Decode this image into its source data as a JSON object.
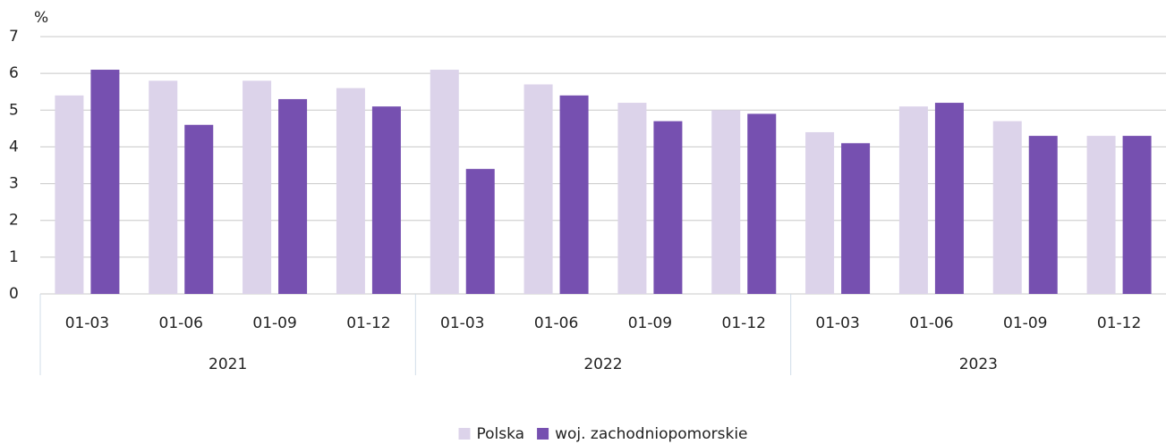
{
  "chart_data": {
    "type": "bar",
    "y_axis_label": "%",
    "categories": [
      "01-03",
      "01-06",
      "01-09",
      "01-12",
      "01-03",
      "01-06",
      "01-09",
      "01-12",
      "01-03",
      "01-06",
      "01-09",
      "01-12"
    ],
    "category_groups": [
      "2021",
      "2022",
      "2023"
    ],
    "series": [
      {
        "name": "Polska",
        "color": "#dcd3ea",
        "values": [
          5.4,
          5.8,
          5.8,
          5.6,
          6.1,
          5.7,
          5.2,
          5.0,
          4.4,
          5.1,
          4.7,
          4.3
        ]
      },
      {
        "name": "woj. zachodniopomorskie",
        "color": "#7650b0",
        "values": [
          6.1,
          4.6,
          5.3,
          5.1,
          3.4,
          5.4,
          4.7,
          4.9,
          4.1,
          5.2,
          4.3,
          4.3
        ]
      }
    ],
    "ylim": [
      0,
      7
    ],
    "yticks": [
      0,
      1,
      2,
      3,
      4,
      5,
      6,
      7
    ],
    "grid": true,
    "legend": "bottom"
  }
}
